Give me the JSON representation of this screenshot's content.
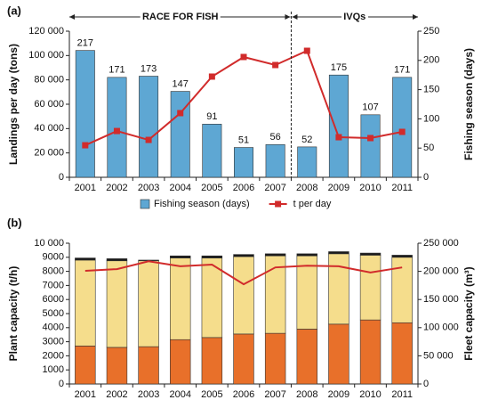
{
  "chart_data": [
    {
      "type": "combo",
      "label": "(a)",
      "annotations": [
        "RACE FOR FISH",
        "IVQs"
      ],
      "categories": [
        "2001",
        "2002",
        "2003",
        "2004",
        "2005",
        "2006",
        "2007",
        "2008",
        "2009",
        "2010",
        "2011"
      ],
      "ylabel": "Landings per day (tons)",
      "y2label": "Fishing season (days)",
      "ylim": [
        0,
        120000
      ],
      "yticks": [
        0,
        {
          "value": 20000,
          "label": "20 000"
        },
        {
          "value": 40000,
          "label": "40 000"
        },
        {
          "value": 60000,
          "label": "60 000"
        },
        {
          "value": 80000,
          "label": "80 000"
        },
        {
          "value": 100000,
          "label": "100 000"
        },
        {
          "value": 120000,
          "label": "120 000"
        }
      ],
      "y2lim": [
        0,
        250
      ],
      "y2ticks": [
        0,
        50,
        100,
        150,
        200,
        250
      ],
      "legend": "bottom",
      "data_labels": true,
      "series": [
        {
          "name": "Fishing season (days)",
          "type": "bar",
          "axis": "y2",
          "color": "#5ea7d3",
          "values": [
            217,
            171,
            173,
            147,
            91,
            51,
            56,
            52,
            175,
            107,
            171
          ]
        },
        {
          "name": "t per day",
          "type": "line",
          "marker": "square",
          "color": "#d12b2b",
          "values": [
            26300,
            38000,
            30700,
            52700,
            82700,
            98800,
            92200,
            103900,
            32900,
            32200,
            37300
          ]
        }
      ]
    },
    {
      "type": "combo",
      "label": "(b)",
      "stacked": true,
      "categories": [
        "2001",
        "2002",
        "2003",
        "2004",
        "2005",
        "2006",
        "2007",
        "2008",
        "2009",
        "2010",
        "2011"
      ],
      "ylabel": "Plant capacity (t/h)",
      "y2label": "Fleet capacity (m³)",
      "ylim": [
        0,
        10000
      ],
      "yticks": [
        0,
        1000,
        2000,
        3000,
        4000,
        5000,
        6000,
        7000,
        8000,
        9000,
        {
          "value": 10000,
          "label": "10 000"
        }
      ],
      "y2lim": [
        0,
        250000
      ],
      "y2ticks": [
        0,
        {
          "value": 50000,
          "label": "50 000"
        },
        {
          "value": 100000,
          "label": "100 000"
        },
        {
          "value": 150000,
          "label": "150 000"
        },
        {
          "value": 200000,
          "label": "200 000"
        },
        {
          "value": 250000,
          "label": "250 000"
        }
      ],
      "series": [
        {
          "type": "bar",
          "color": "#e8702a",
          "values": [
            2700,
            2600,
            2650,
            3150,
            3300,
            3550,
            3600,
            3900,
            4250,
            4550,
            4350
          ]
        },
        {
          "type": "bar",
          "color": "#f5dd8c",
          "values": [
            6100,
            6150,
            6100,
            5800,
            5650,
            5500,
            5500,
            5200,
            5000,
            4600,
            4650
          ]
        },
        {
          "type": "bar",
          "color": "#1a1a1a",
          "values": [
            150,
            150,
            50,
            150,
            150,
            150,
            150,
            150,
            150,
            150,
            150
          ]
        },
        {
          "type": "line",
          "axis": "y2",
          "color": "#d12b2b",
          "values": [
            201000,
            204000,
            218000,
            209000,
            212000,
            177000,
            207000,
            210000,
            209000,
            198000,
            207000
          ]
        }
      ]
    }
  ]
}
